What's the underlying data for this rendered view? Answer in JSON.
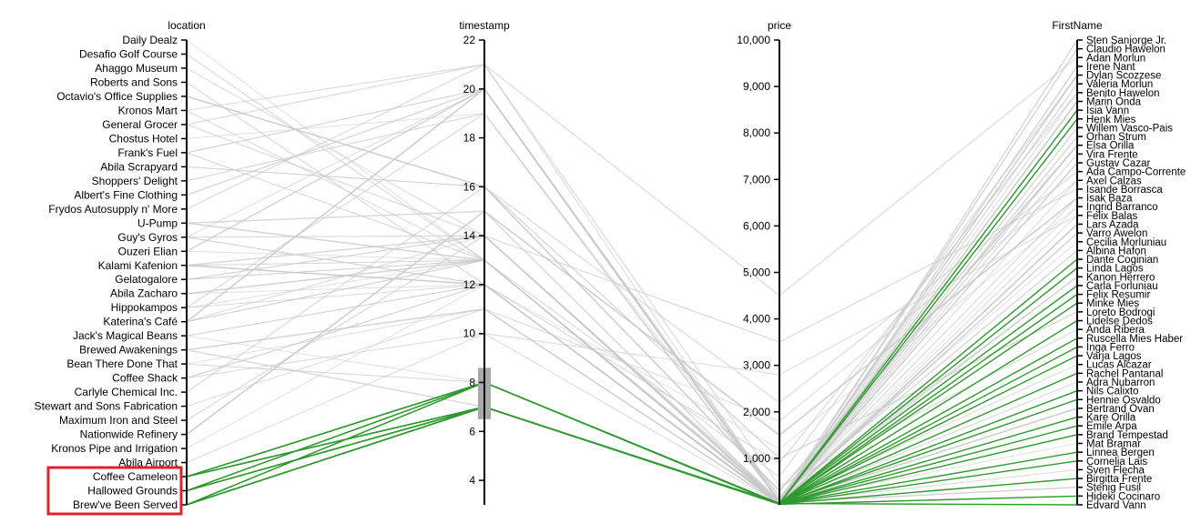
{
  "colors": {
    "background": "#ffffff",
    "context_line": "#c8c8c8",
    "selected_line": "#2e9a2e",
    "highlight_box": "#e0202a",
    "brush": "#a8a8a8"
  },
  "chart_data": {
    "type": "parallel-coordinates",
    "axes": [
      {
        "key": "location",
        "label": "location",
        "kind": "categorical",
        "categories": [
          "Daily Dealz",
          "Desafio Golf Course",
          "Ahaggo Museum",
          "Roberts and Sons",
          "Octavio's Office Supplies",
          "Kronos Mart",
          "General Grocer",
          "Chostus Hotel",
          "Frank's Fuel",
          "Abila Scrapyard",
          "Shoppers' Delight",
          "Albert's Fine Clothing",
          "Frydos Autosupply n' More",
          "U-Pump",
          "Guy's Gyros",
          "Ouzeri Elian",
          "Kalami Kafenion",
          "Gelatogalore",
          "Abila Zacharo",
          "Hippokampos",
          "Katerina's Café",
          "Jack's Magical Beans",
          "Brewed Awakenings",
          "Bean There Done That",
          "Coffee Shack",
          "Carlyle Chemical Inc.",
          "Stewart and Sons Fabrication",
          "Maximum Iron and Steel",
          "Nationwide Refinery",
          "Kronos Pipe and Irrigation",
          "Abila Airport",
          "Coffee Cameleon",
          "Hallowed Grounds",
          "Brew've Been Served"
        ],
        "highlighted_categories": [
          "Coffee Cameleon",
          "Hallowed Grounds",
          "Brew've Been Served"
        ]
      },
      {
        "key": "timestamp",
        "label": "timestamp",
        "kind": "numeric",
        "range": [
          3,
          22
        ],
        "ticks": [
          "4",
          "6",
          "8",
          "10",
          "12",
          "14",
          "16",
          "18",
          "20",
          "22"
        ],
        "brush": [
          6.5,
          8.6
        ]
      },
      {
        "key": "price",
        "label": "price",
        "kind": "numeric",
        "range": [
          0,
          10000
        ],
        "ticks": [
          "1,000",
          "2,000",
          "3,000",
          "4,000",
          "5,000",
          "6,000",
          "7,000",
          "8,000",
          "9,000",
          "10,000"
        ]
      },
      {
        "key": "FirstName",
        "label": "FirstName",
        "kind": "categorical",
        "categories": [
          "Sten Sanjorge Jr.",
          "Claudio Hawelon",
          "Adan Morlun",
          "Irene Nant",
          "Dylan Scozzese",
          "Valeria Morlun",
          "Benito Hawelon",
          "Marin Onda",
          "Isia Vann",
          "Henk Mies",
          "Willem Vasco-Pais",
          "Orhan Strum",
          "Elsa Orilla",
          "Vira Frente",
          "Gustav Cazar",
          "Ada Campo-Corrente",
          "Axel Calzas",
          "Isande Borrasca",
          "Isak Baza",
          "Ingrid Barranco",
          "Felix Balas",
          "Lars Azada",
          "Varro Awelon",
          "Cecilia Morluniau",
          "Albina Hafon",
          "Dante Coginian",
          "Linda Lagos",
          "Kanon Herrero",
          "Carla Forluniau",
          "Felix Resumir",
          "Minke Mies",
          "Loreto Bodrogi",
          "Lidelse Dedos",
          "Anda Ribera",
          "Ruscella Mies Haber",
          "Inga Ferro",
          "Varja Lagos",
          "Lucas Alcazar",
          "Rachel Pantanal",
          "Adra Nubarron",
          "Nils Calixto",
          "Hennie Osvaldo",
          "Bertrand Ovan",
          "Kare Orilla",
          "Emile Arpa",
          "Brand Tempestad",
          "Mat Bramar",
          "Linnea Bergen",
          "Cornelia Lais",
          "Sven Flecha",
          "Birgitta Frente",
          "Stenig Fusil",
          "Hideki Cocinaro",
          "Edvard Vann"
        ]
      }
    ],
    "selected_records": [
      {
        "location": "Coffee Cameleon",
        "timestamp": 8,
        "price": 30,
        "FirstName": "Isia Vann"
      },
      {
        "location": "Hallowed Grounds",
        "timestamp": 8,
        "price": 20,
        "FirstName": "Henk Mies"
      },
      {
        "location": "Brew've Been Served",
        "timestamp": 7,
        "price": 25,
        "FirstName": "Dante Coginian"
      },
      {
        "location": "Coffee Cameleon",
        "timestamp": 7,
        "price": 15,
        "FirstName": "Linda Lagos"
      },
      {
        "location": "Hallowed Grounds",
        "timestamp": 7,
        "price": 35,
        "FirstName": "Carla Forluniau"
      },
      {
        "location": "Brew've Been Served",
        "timestamp": 8,
        "price": 12,
        "FirstName": "Felix Resumir"
      },
      {
        "location": "Coffee Cameleon",
        "timestamp": 7,
        "price": 22,
        "FirstName": "Minke Mies"
      },
      {
        "location": "Brew've Been Served",
        "timestamp": 7,
        "price": 18,
        "FirstName": "Lidelse Dedos"
      },
      {
        "location": "Hallowed Grounds",
        "timestamp": 8,
        "price": 28,
        "FirstName": "Ruscella Mies Haber"
      },
      {
        "location": "Coffee Cameleon",
        "timestamp": 7,
        "price": 14,
        "FirstName": "Inga Ferro"
      },
      {
        "location": "Brew've Been Served",
        "timestamp": 7,
        "price": 20,
        "FirstName": "Varja Lagos"
      },
      {
        "location": "Hallowed Grounds",
        "timestamp": 7,
        "price": 26,
        "FirstName": "Rachel Pantanal"
      },
      {
        "location": "Coffee Cameleon",
        "timestamp": 8,
        "price": 16,
        "FirstName": "Nils Calixto"
      },
      {
        "location": "Brew've Been Served",
        "timestamp": 7,
        "price": 24,
        "FirstName": "Hennie Osvaldo"
      },
      {
        "location": "Hallowed Grounds",
        "timestamp": 7,
        "price": 19,
        "FirstName": "Kare Orilla"
      },
      {
        "location": "Brew've Been Served",
        "timestamp": 8,
        "price": 21,
        "FirstName": "Emile Arpa"
      },
      {
        "location": "Coffee Cameleon",
        "timestamp": 7,
        "price": 13,
        "FirstName": "Brand Tempestad"
      },
      {
        "location": "Hallowed Grounds",
        "timestamp": 7,
        "price": 27,
        "FirstName": "Linnea Bergen"
      },
      {
        "location": "Brew've Been Served",
        "timestamp": 7,
        "price": 17,
        "FirstName": "Cornelia Lais"
      },
      {
        "location": "Coffee Cameleon",
        "timestamp": 8,
        "price": 23,
        "FirstName": "Birgitta Frente"
      },
      {
        "location": "Hallowed Grounds",
        "timestamp": 7,
        "price": 11,
        "FirstName": "Hideki Cocinaro"
      },
      {
        "location": "Brew've Been Served",
        "timestamp": 7,
        "price": 29,
        "FirstName": "Edvard Vann"
      }
    ],
    "context_records": [
      {
        "location": "General Grocer",
        "timestamp": 21,
        "price": 4500,
        "FirstName": "Adan Morlun"
      },
      {
        "location": "Guy's Gyros",
        "timestamp": 20,
        "price": 60,
        "FirstName": "Claudio Hawelon"
      },
      {
        "location": "Kalami Kafenion",
        "timestamp": 13,
        "price": 45,
        "FirstName": "Irene Nant"
      },
      {
        "location": "Katerina's Café",
        "timestamp": 20,
        "price": 80,
        "FirstName": "Dylan Scozzese"
      },
      {
        "location": "Ouzeri Elian",
        "timestamp": 13,
        "price": 35,
        "FirstName": "Valeria Morlun"
      },
      {
        "location": "Hippokampos",
        "timestamp": 12,
        "price": 55,
        "FirstName": "Benito Hawelon"
      },
      {
        "location": "Abila Zacharo",
        "timestamp": 13,
        "price": 40,
        "FirstName": "Marin Onda"
      },
      {
        "location": "Gelatogalore",
        "timestamp": 14,
        "price": 25,
        "FirstName": "Willem Vasco-Pais"
      },
      {
        "location": "Jack's Magical Beans",
        "timestamp": 8,
        "price": 20,
        "FirstName": "Orhan Strum"
      },
      {
        "location": "Brewed Awakenings",
        "timestamp": 7,
        "price": 15,
        "FirstName": "Elsa Orilla"
      },
      {
        "location": "Bean There Done That",
        "timestamp": 8,
        "price": 18,
        "FirstName": "Vira Frente"
      },
      {
        "location": "Coffee Shack",
        "timestamp": 12,
        "price": 22,
        "FirstName": "Gustav Cazar"
      },
      {
        "location": "Carlyle Chemical Inc.",
        "timestamp": 16,
        "price": 2200,
        "FirstName": "Ada Campo-Corrente"
      },
      {
        "location": "Stewart and Sons Fabrication",
        "timestamp": 11,
        "price": 1800,
        "FirstName": "Axel Calzas"
      },
      {
        "location": "Maximum Iron and Steel",
        "timestamp": 14,
        "price": 3500,
        "FirstName": "Isande Borrasca"
      },
      {
        "location": "Nationwide Refinery",
        "timestamp": 15,
        "price": 1500,
        "FirstName": "Isak Baza"
      },
      {
        "location": "Kronos Pipe and Irrigation",
        "timestamp": 12,
        "price": 1200,
        "FirstName": "Ingrid Barranco"
      },
      {
        "location": "Abila Airport",
        "timestamp": 10,
        "price": 2800,
        "FirstName": "Felix Balas"
      },
      {
        "location": "U-Pump",
        "timestamp": 13,
        "price": 30,
        "FirstName": "Lars Azada"
      },
      {
        "location": "Frank's Fuel",
        "timestamp": 20,
        "price": 50,
        "FirstName": "Varro Awelon"
      },
      {
        "location": "Chostus Hotel",
        "timestamp": 19,
        "price": 200,
        "FirstName": "Cecilia Morluniau"
      },
      {
        "location": "Albert's Fine Clothing",
        "timestamp": 20,
        "price": 150,
        "FirstName": "Albina Hafon"
      },
      {
        "location": "Shoppers' Delight",
        "timestamp": 19,
        "price": 90,
        "FirstName": "Kanon Herrero"
      },
      {
        "location": "Abila Scrapyard",
        "timestamp": 16,
        "price": 1000,
        "FirstName": "Loreto Bodrogi"
      },
      {
        "location": "Frydos Autosupply n' More",
        "timestamp": 21,
        "price": 400,
        "FirstName": "Anda Ribera"
      },
      {
        "location": "Kronos Mart",
        "timestamp": 21,
        "price": 70,
        "FirstName": "Lucas Alcazar"
      },
      {
        "location": "Guy's Gyros",
        "timestamp": 14,
        "price": 40,
        "FirstName": "Adra Nubarron"
      },
      {
        "location": "Kalami Kafenion",
        "timestamp": 12,
        "price": 35,
        "FirstName": "Bertrand Ovan"
      },
      {
        "location": "Hippokampos",
        "timestamp": 13,
        "price": 60,
        "FirstName": "Mat Bramar"
      },
      {
        "location": "Katerina's Café",
        "timestamp": 14,
        "price": 45,
        "FirstName": "Sven Flecha"
      },
      {
        "location": "Ouzeri Elian",
        "timestamp": 20,
        "price": 55,
        "FirstName": "Stenig Fusil"
      },
      {
        "location": "Gelatogalore",
        "timestamp": 13,
        "price": 30,
        "FirstName": "Sten Sanjorge Jr."
      },
      {
        "location": "Abila Zacharo",
        "timestamp": 12,
        "price": 25,
        "FirstName": "Henk Mies"
      },
      {
        "location": "Kalami Kafenion",
        "timestamp": 14,
        "price": 50,
        "FirstName": "Isia Vann"
      },
      {
        "location": "Hippokampos",
        "timestamp": 19,
        "price": 65,
        "FirstName": "Irene Nant"
      },
      {
        "location": "Katerina's Café",
        "timestamp": 13,
        "price": 40,
        "FirstName": "Orhan Strum"
      },
      {
        "location": "Desafio Golf Course",
        "timestamp": 13,
        "price": 600,
        "FirstName": "Dylan Scozzese"
      },
      {
        "location": "Ahaggo Museum",
        "timestamp": 14,
        "price": 120,
        "FirstName": "Claudio Hawelon"
      },
      {
        "location": "Roberts and Sons",
        "timestamp": 12,
        "price": 900,
        "FirstName": "Benito Hawelon"
      },
      {
        "location": "Octavio's Office Supplies",
        "timestamp": 16,
        "price": 300,
        "FirstName": "Elsa Orilla"
      },
      {
        "location": "Daily Dealz",
        "timestamp": 13,
        "price": 100,
        "FirstName": "Valeria Morlun"
      },
      {
        "location": "Coffee Shack",
        "timestamp": 10,
        "price": 20,
        "FirstName": "Felix Balas"
      },
      {
        "location": "Brewed Awakenings",
        "timestamp": 11,
        "price": 18,
        "FirstName": "Lars Azada"
      },
      {
        "location": "Jack's Magical Beans",
        "timestamp": 12,
        "price": 16,
        "FirstName": "Kanon Herrero"
      },
      {
        "location": "Bean There Done That",
        "timestamp": 11,
        "price": 14,
        "FirstName": "Ingrid Barranco"
      },
      {
        "location": "U-Pump",
        "timestamp": 15,
        "price": 45,
        "FirstName": "Marin Onda"
      },
      {
        "location": "Frank's Fuel",
        "timestamp": 13,
        "price": 40,
        "FirstName": "Varro Awelon"
      },
      {
        "location": "Guy's Gyros",
        "timestamp": 12,
        "price": 35,
        "FirstName": "Gustav Cazar"
      },
      {
        "location": "General Grocer",
        "timestamp": 14,
        "price": 80,
        "FirstName": "Isak Baza"
      },
      {
        "location": "Kronos Mart",
        "timestamp": 13,
        "price": 60,
        "FirstName": "Axel Calzas"
      }
    ]
  }
}
